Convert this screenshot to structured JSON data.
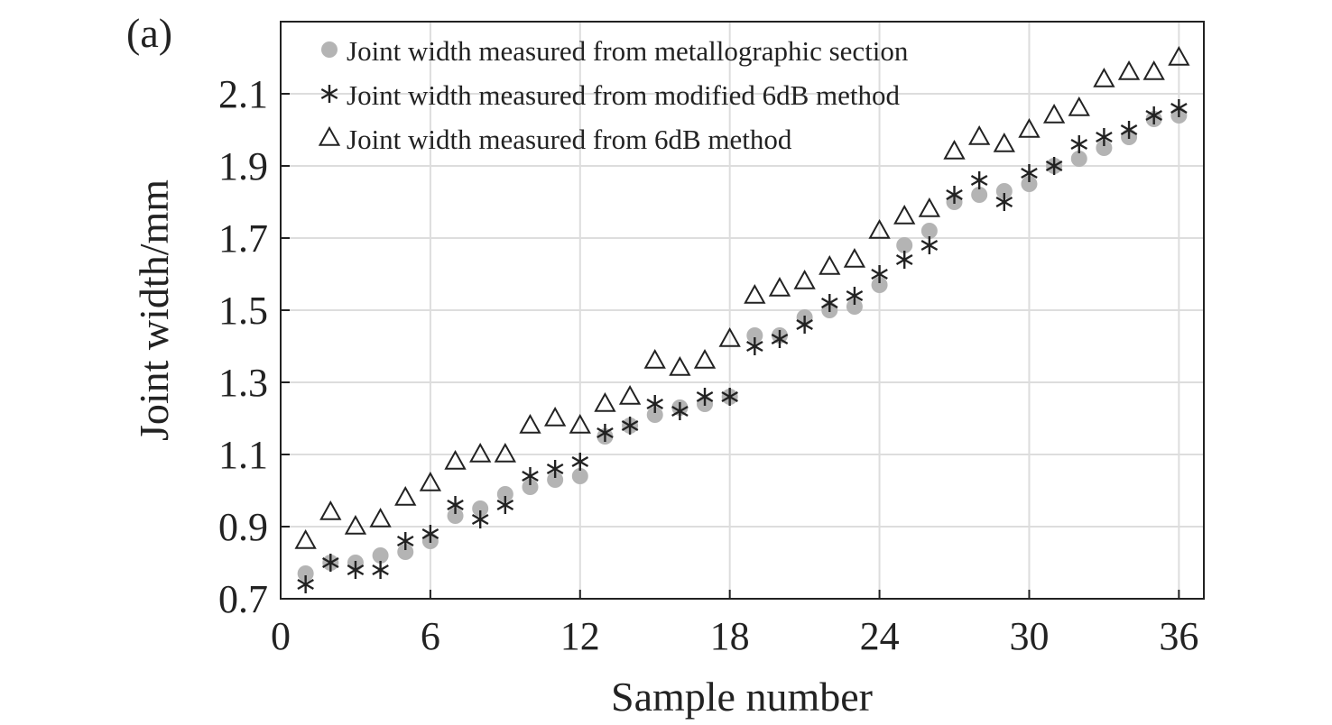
{
  "panel_label": "(a)",
  "colors": {
    "circle": "#b4b4b4",
    "marker_stroke": "#222222",
    "grid": "#dddddd",
    "axis": "#222222"
  },
  "chart_data": {
    "type": "scatter",
    "xlabel": "Sample number",
    "ylabel": "Joint width/mm",
    "xlim": [
      0,
      37
    ],
    "ylim": [
      0.7,
      2.3
    ],
    "xticks": [
      0,
      6,
      12,
      18,
      24,
      30,
      36
    ],
    "yticks": [
      0.7,
      0.9,
      1.1,
      1.3,
      1.5,
      1.7,
      1.9,
      2.1
    ],
    "xtick_labels": [
      "0",
      "6",
      "12",
      "18",
      "24",
      "30",
      "36"
    ],
    "ytick_labels": [
      "0.7",
      "0.9",
      "1.1",
      "1.3",
      "1.5",
      "1.7",
      "1.9",
      "2.1"
    ],
    "grid": true,
    "legend_position": "top-left",
    "x": [
      1,
      2,
      3,
      4,
      5,
      6,
      7,
      8,
      9,
      10,
      11,
      12,
      13,
      14,
      15,
      16,
      17,
      18,
      19,
      20,
      21,
      22,
      23,
      24,
      25,
      26,
      27,
      28,
      29,
      30,
      31,
      32,
      33,
      34,
      35,
      36
    ],
    "series": [
      {
        "name": "Joint width measured from metallographic section",
        "marker": "filled-circle",
        "values": [
          0.77,
          0.8,
          0.8,
          0.82,
          0.83,
          0.86,
          0.93,
          0.95,
          0.99,
          1.01,
          1.03,
          1.04,
          1.15,
          1.18,
          1.21,
          1.23,
          1.24,
          1.26,
          1.43,
          1.43,
          1.48,
          1.5,
          1.51,
          1.57,
          1.68,
          1.72,
          1.8,
          1.82,
          1.83,
          1.85,
          1.9,
          1.92,
          1.95,
          1.98,
          2.03,
          2.04
        ]
      },
      {
        "name": "Joint width measured from modified 6dB method",
        "marker": "asterisk",
        "values": [
          0.74,
          0.8,
          0.78,
          0.78,
          0.86,
          0.88,
          0.96,
          0.92,
          0.96,
          1.04,
          1.06,
          1.08,
          1.16,
          1.18,
          1.24,
          1.22,
          1.26,
          1.26,
          1.4,
          1.42,
          1.46,
          1.52,
          1.54,
          1.6,
          1.64,
          1.68,
          1.82,
          1.86,
          1.8,
          1.88,
          1.9,
          1.96,
          1.98,
          2.0,
          2.04,
          2.06
        ]
      },
      {
        "name": "Joint width measured from 6dB method",
        "marker": "open-triangle",
        "values": [
          0.86,
          0.94,
          0.9,
          0.92,
          0.98,
          1.02,
          1.08,
          1.1,
          1.1,
          1.18,
          1.2,
          1.18,
          1.24,
          1.26,
          1.36,
          1.34,
          1.36,
          1.42,
          1.54,
          1.56,
          1.58,
          1.62,
          1.64,
          1.72,
          1.76,
          1.78,
          1.94,
          1.98,
          1.96,
          2.0,
          2.04,
          2.06,
          2.14,
          2.16,
          2.16,
          2.2
        ]
      }
    ]
  }
}
